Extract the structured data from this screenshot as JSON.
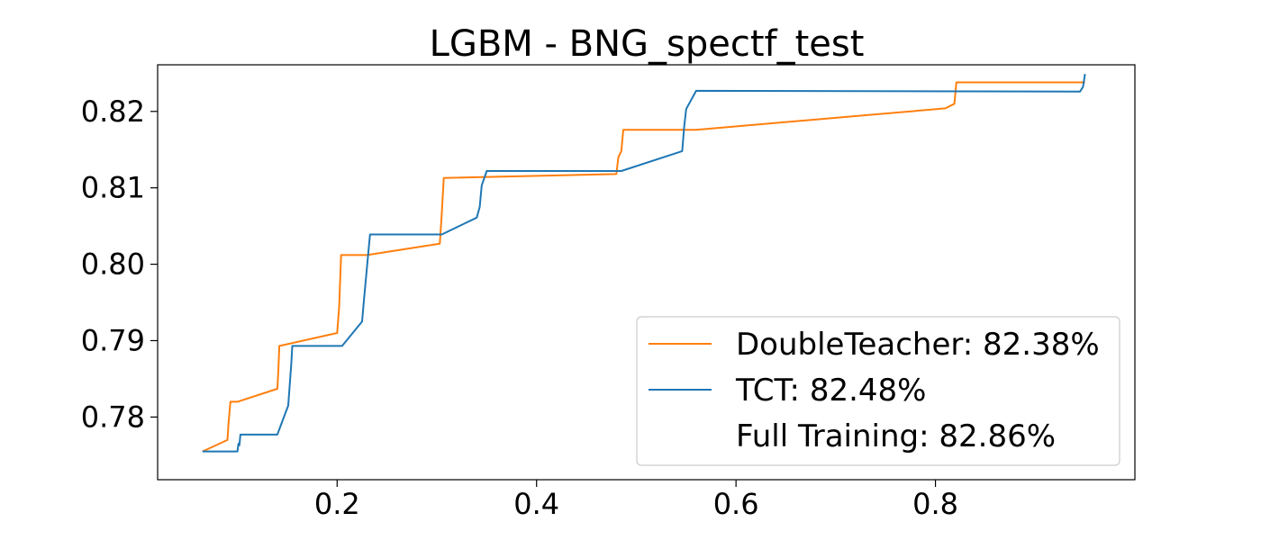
{
  "chart_data": {
    "type": "line",
    "title": "LGBM - BNG_spectf_test",
    "xlabel": "",
    "ylabel": "",
    "xlim": [
      0.02,
      1.0
    ],
    "ylim": [
      0.7718,
      0.8261
    ],
    "xticks": [
      0.2,
      0.4,
      0.6,
      0.8
    ],
    "xtick_labels": [
      "0.2",
      "0.4",
      "0.6",
      "0.8"
    ],
    "yticks": [
      0.78,
      0.79,
      0.8,
      0.81,
      0.82
    ],
    "ytick_labels": [
      "0.78",
      "0.79",
      "0.80",
      "0.81",
      "0.82"
    ],
    "grid": false,
    "legend_position": "lower-right",
    "series": [
      {
        "name": "DoubleTeacher: 82.38%",
        "color": "#ff7f0e",
        "x": [
          0.065,
          0.09,
          0.091,
          0.093,
          0.1,
          0.14,
          0.141,
          0.142,
          0.2,
          0.202,
          0.204,
          0.23,
          0.303,
          0.305,
          0.307,
          0.48,
          0.482,
          0.485,
          0.487,
          0.56,
          0.81,
          0.819,
          0.821,
          0.95
        ],
        "y": [
          0.7755,
          0.777,
          0.779,
          0.782,
          0.782,
          0.7837,
          0.786,
          0.7893,
          0.791,
          0.7943,
          0.8012,
          0.8012,
          0.8027,
          0.8067,
          0.8113,
          0.8118,
          0.814,
          0.8148,
          0.8176,
          0.8176,
          0.8204,
          0.821,
          0.8238,
          0.8238
        ]
      },
      {
        "name": "TCT: 82.48%",
        "color": "#1f77b4",
        "x": [
          0.065,
          0.1,
          0.101,
          0.102,
          0.103,
          0.104,
          0.14,
          0.151,
          0.154,
          0.155,
          0.205,
          0.225,
          0.227,
          0.233,
          0.305,
          0.34,
          0.343,
          0.345,
          0.35,
          0.485,
          0.546,
          0.548,
          0.55,
          0.56,
          0.945,
          0.948,
          0.95
        ],
        "y": [
          0.7755,
          0.7755,
          0.7765,
          0.7763,
          0.7777,
          0.7777,
          0.7777,
          0.7815,
          0.787,
          0.7893,
          0.7893,
          0.7925,
          0.7955,
          0.8039,
          0.8039,
          0.8061,
          0.8075,
          0.8103,
          0.8122,
          0.8122,
          0.8148,
          0.818,
          0.8203,
          0.8227,
          0.8226,
          0.8232,
          0.8249
        ]
      },
      {
        "name": "Full Training: 82.86%",
        "color": "#ffffff",
        "x": [],
        "y": []
      }
    ]
  }
}
